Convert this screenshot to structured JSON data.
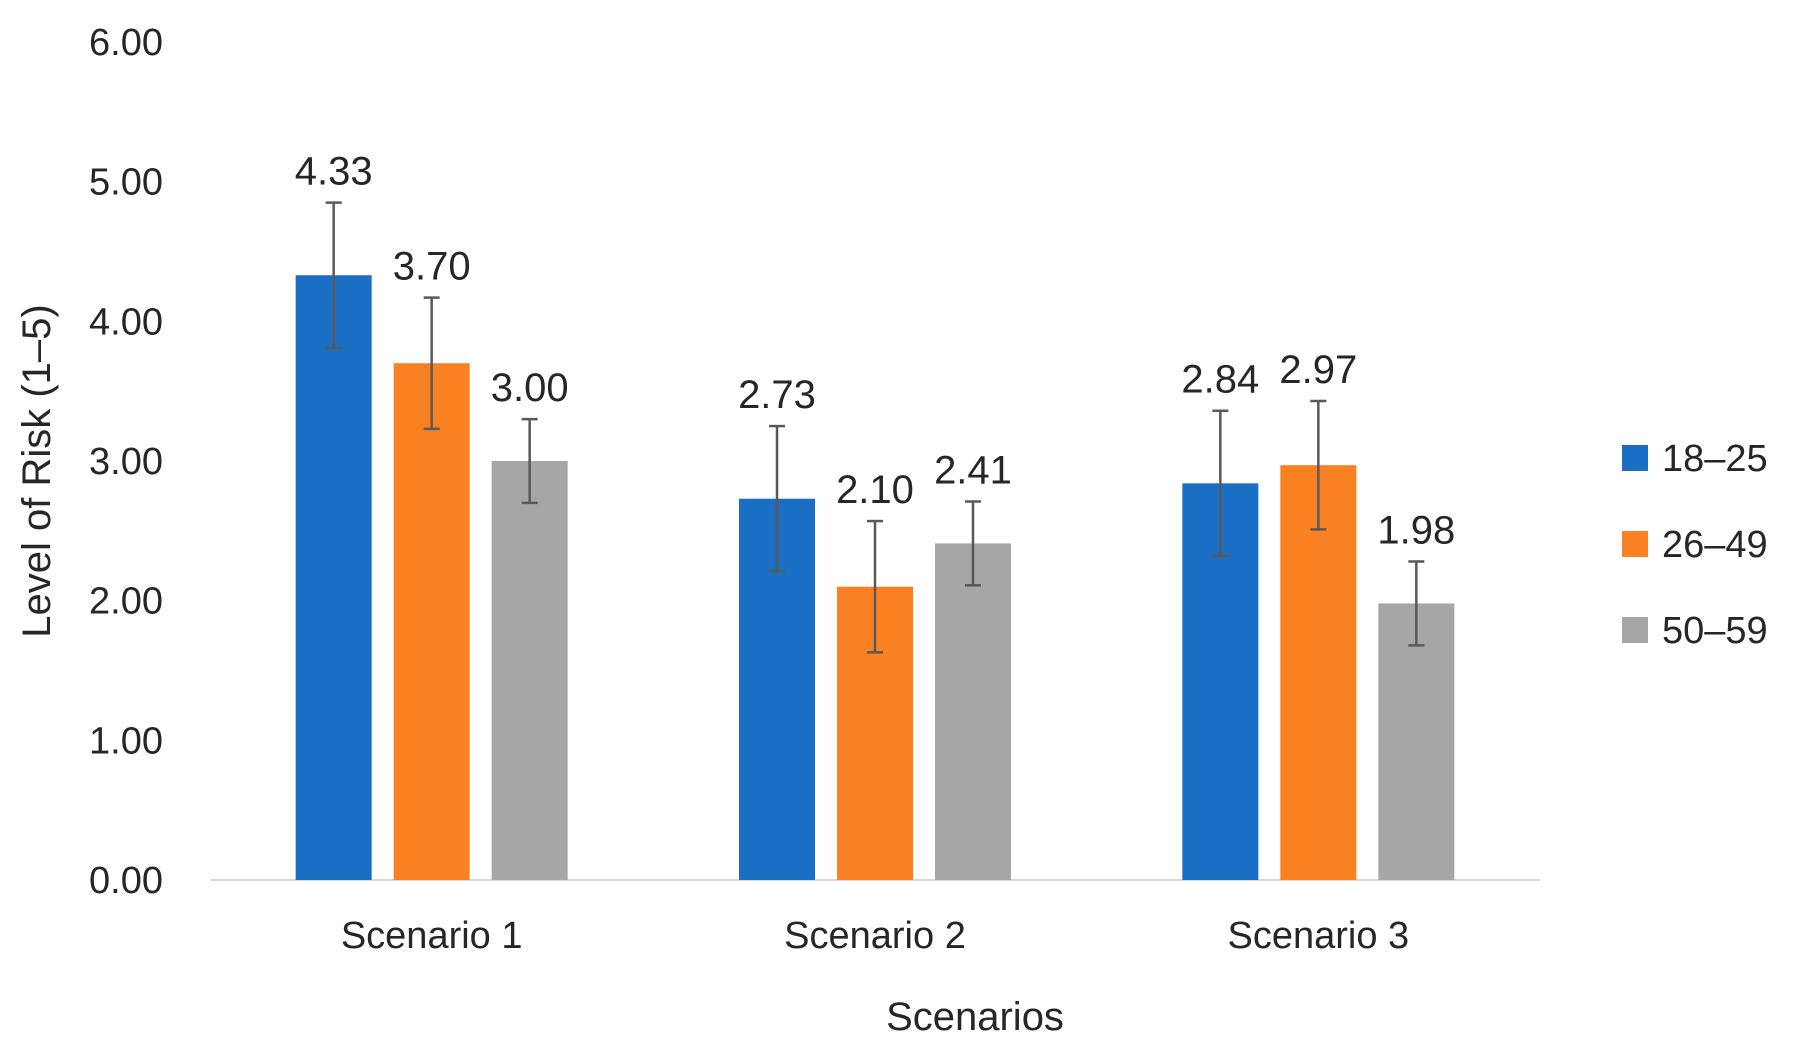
{
  "chart_data": {
    "type": "bar",
    "title": "",
    "xlabel": "Scenarios",
    "ylabel": "Level of Risk (1–5)",
    "categories": [
      "Scenario 1",
      "Scenario 2",
      "Scenario 3"
    ],
    "ylim": [
      0,
      6
    ],
    "yticks": [
      0,
      1,
      2,
      3,
      4,
      5,
      6
    ],
    "ytick_labels": [
      "0.00",
      "1.00",
      "2.00",
      "3.00",
      "4.00",
      "5.00",
      "6.00"
    ],
    "grid": false,
    "legend_position": "right",
    "series": [
      {
        "name": "18–25",
        "color": "#1a6fc4",
        "values": [
          4.33,
          2.73,
          2.84
        ],
        "labels": [
          "4.33",
          "2.73",
          "2.84"
        ],
        "errors": [
          0.52,
          0.52,
          0.52
        ]
      },
      {
        "name": "26–49",
        "color": "#f98122",
        "values": [
          3.7,
          2.1,
          2.97
        ],
        "labels": [
          "3.70",
          "2.10",
          "2.97"
        ],
        "errors": [
          0.47,
          0.47,
          0.46
        ]
      },
      {
        "name": "50–59",
        "color": "#a6a6a6",
        "values": [
          3.0,
          2.41,
          1.98
        ],
        "labels": [
          "3.00",
          "2.41",
          "1.98"
        ],
        "errors": [
          0.3,
          0.3,
          0.3
        ]
      }
    ]
  }
}
